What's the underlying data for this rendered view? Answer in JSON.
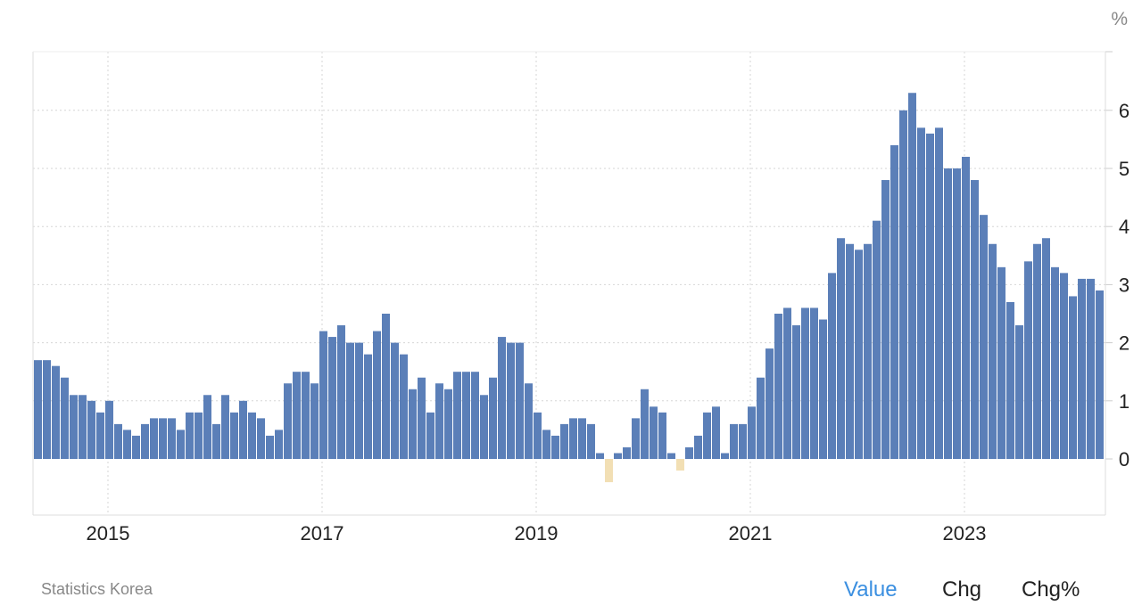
{
  "chart_data": {
    "type": "bar",
    "unit_label": "%",
    "x_start": "2014-05",
    "x_end": "2024-04",
    "frequency": "monthly",
    "x_tick_labels": [
      "2015",
      "2017",
      "2019",
      "2021",
      "2023"
    ],
    "y_tick_labels": [
      "0",
      "1",
      "2",
      "3",
      "4",
      "5",
      "6"
    ],
    "ylim": [
      -1,
      7
    ],
    "y_axis_side": "right",
    "grid": true,
    "colors": {
      "positive": "#5b7fb8",
      "negative": "#f2dfb4"
    },
    "values": [
      1.7,
      1.7,
      1.6,
      1.4,
      1.1,
      1.1,
      1.0,
      0.8,
      1.0,
      0.6,
      0.5,
      0.4,
      0.6,
      0.7,
      0.7,
      0.7,
      0.5,
      0.8,
      0.8,
      1.1,
      0.6,
      1.1,
      0.8,
      1.0,
      0.8,
      0.7,
      0.4,
      0.5,
      1.3,
      1.5,
      1.5,
      1.3,
      2.2,
      2.1,
      2.3,
      2.0,
      2.0,
      1.8,
      2.2,
      2.5,
      2.0,
      1.8,
      1.2,
      1.4,
      0.8,
      1.3,
      1.2,
      1.5,
      1.5,
      1.5,
      1.1,
      1.4,
      2.1,
      2.0,
      2.0,
      1.3,
      0.8,
      0.5,
      0.4,
      0.6,
      0.7,
      0.7,
      0.6,
      0.1,
      -0.4,
      0.1,
      0.2,
      0.7,
      1.2,
      0.9,
      0.8,
      0.1,
      -0.2,
      0.2,
      0.4,
      0.8,
      0.9,
      0.1,
      0.6,
      0.6,
      0.9,
      1.4,
      1.9,
      2.5,
      2.6,
      2.3,
      2.6,
      2.6,
      2.4,
      3.2,
      3.8,
      3.7,
      3.6,
      3.7,
      4.1,
      4.8,
      5.4,
      6.0,
      6.3,
      5.7,
      5.6,
      5.7,
      5.0,
      5.0,
      5.2,
      4.8,
      4.2,
      3.7,
      3.3,
      2.7,
      2.3,
      3.4,
      3.7,
      3.8,
      3.3,
      3.2,
      2.8,
      3.1,
      3.1,
      2.9
    ]
  },
  "source": "Statistics Korea",
  "tabs": [
    {
      "label": "Value",
      "active": true
    },
    {
      "label": "Chg",
      "active": false
    },
    {
      "label": "Chg%",
      "active": false
    }
  ]
}
